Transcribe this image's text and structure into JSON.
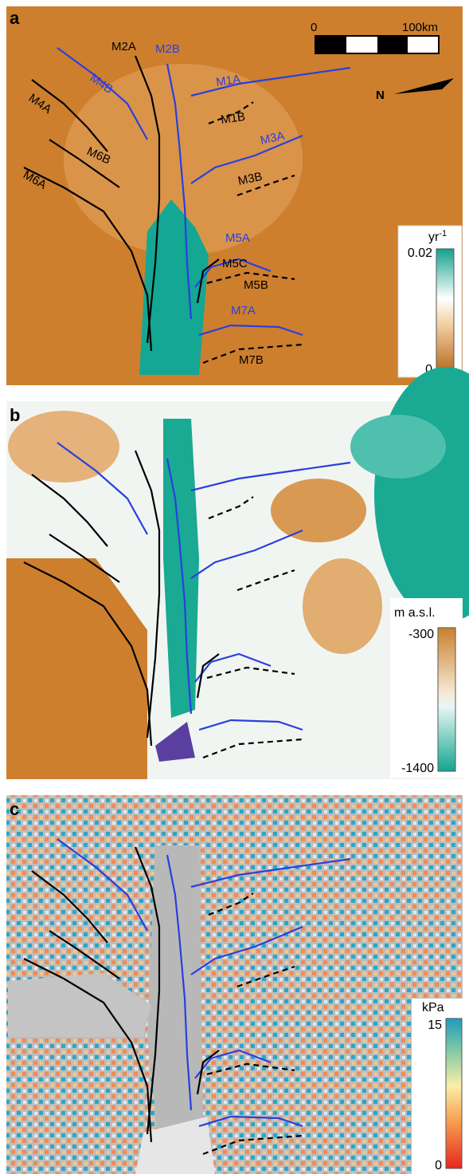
{
  "panels": [
    {
      "label": "a",
      "scale_bar": {
        "start": "0",
        "end": "100km"
      },
      "north": "N",
      "colorbar": {
        "unit": "yr",
        "unit_superscript": "-1",
        "top": "0.02",
        "bottom": "0"
      },
      "labels": [
        {
          "text": "M2A",
          "color": "black"
        },
        {
          "text": "M2B",
          "color": "blue"
        },
        {
          "text": "M4B",
          "color": "blue"
        },
        {
          "text": "M4A",
          "color": "black"
        },
        {
          "text": "M1A",
          "color": "blue"
        },
        {
          "text": "M1B",
          "color": "black"
        },
        {
          "text": "M3A",
          "color": "blue"
        },
        {
          "text": "M6B",
          "color": "black"
        },
        {
          "text": "M3B",
          "color": "black"
        },
        {
          "text": "M6A",
          "color": "black"
        },
        {
          "text": "M5A",
          "color": "blue"
        },
        {
          "text": "M5C",
          "color": "black"
        },
        {
          "text": "M5B",
          "color": "black"
        },
        {
          "text": "M7A",
          "color": "blue"
        },
        {
          "text": "M7B",
          "color": "black"
        }
      ]
    },
    {
      "label": "b",
      "colorbar": {
        "unit": "m a.s.l.",
        "top": "-300",
        "bottom": "-1400"
      }
    },
    {
      "label": "c",
      "colorbar": {
        "unit": "kPa",
        "top": "15",
        "bottom": "0"
      }
    }
  ]
}
